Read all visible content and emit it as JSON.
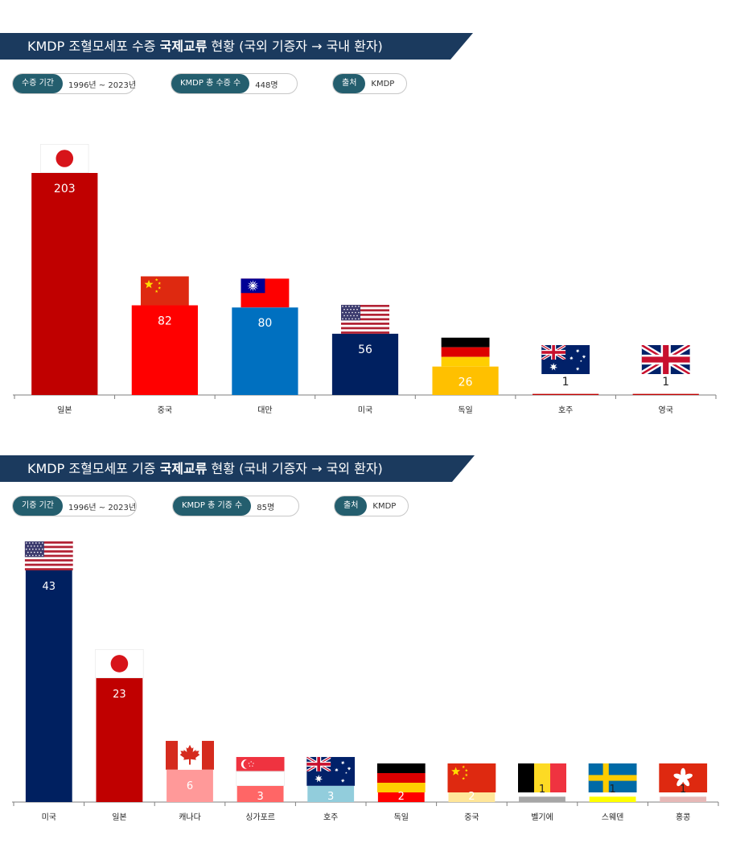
{
  "charts": [
    {
      "banner": {
        "prefix": "KMDP 조혈모세포 수증 ",
        "bold": "국제교류",
        "suffix": " 현황 (국외 기증자 → 국내 환자)"
      },
      "pills": [
        {
          "tag": "수증 기간",
          "value": "1996년 ~ 2023년"
        },
        {
          "tag": "KMDP 총 수증 수",
          "value": "448명"
        },
        {
          "tag": "출처",
          "value": "KMDP"
        }
      ]
    },
    {
      "banner": {
        "prefix": "KMDP 조혈모세포 기증 ",
        "bold": "국제교류",
        "suffix": " 현황 (국내 기증자 → 국외 환자)"
      },
      "pills": [
        {
          "tag": "기증 기간",
          "value": "1996년 ~ 2023년"
        },
        {
          "tag": "KMDP 총 기증 수",
          "value": "85명"
        },
        {
          "tag": "출처",
          "value": "KMDP"
        }
      ]
    }
  ],
  "chart_data": [
    {
      "type": "bar",
      "categories": [
        "일본",
        "중국",
        "대만",
        "미국",
        "독일",
        "호주",
        "영국"
      ],
      "values": [
        203,
        82,
        80,
        56,
        26,
        1,
        1
      ],
      "bar_colors": [
        "#c00000",
        "#ff0000",
        "#0070c0",
        "#002060",
        "#ffc000",
        "#c00000",
        "#c00000"
      ],
      "flags": [
        "japan-flag",
        "china-flag",
        "taiwan-flag",
        "usa-flag",
        "germany-flag",
        "australia-flag",
        "uk-flag"
      ],
      "grid": false
    },
    {
      "type": "bar",
      "categories": [
        "미국",
        "일본",
        "캐나다",
        "싱가포르",
        "호주",
        "독일",
        "중국",
        "벨기에",
        "스웨덴",
        "홍콩"
      ],
      "values": [
        43,
        23,
        6,
        3,
        3,
        2,
        2,
        1,
        1,
        1
      ],
      "bar_colors": [
        "#002060",
        "#c00000",
        "#ff9999",
        "#ff6666",
        "#92cddc",
        "#ff0000",
        "#ffe699",
        "#a6a6a6",
        "#ffff00",
        "#e6b8b7"
      ],
      "flags": [
        "usa-flag",
        "japan-flag",
        "canada-flag",
        "singapore-flag",
        "australia-flag",
        "germany-flag",
        "china-flag",
        "belgium-flag",
        "sweden-flag",
        "hongkong-flag"
      ],
      "grid": false
    }
  ]
}
